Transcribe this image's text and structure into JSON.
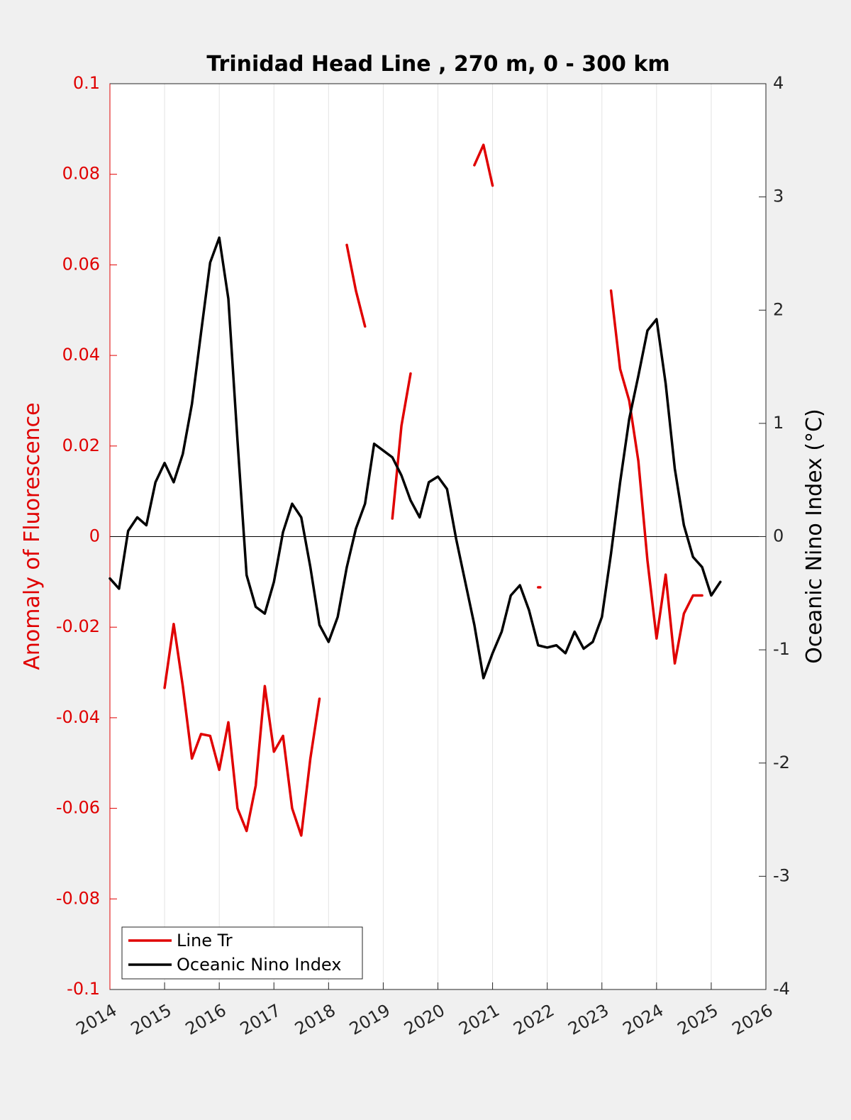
{
  "chart_data": {
    "type": "line",
    "title": "Trinidad Head Line , 270 m, 0 - 300 km",
    "ylabel": "Anomaly of Fluorescence",
    "y2label": "Oceanic Nino Index (°C)",
    "x": [
      2014.0,
      2014.1667,
      2014.3333,
      2014.5,
      2014.6667,
      2014.8333,
      2015.0,
      2015.1667,
      2015.3333,
      2015.5,
      2015.6667,
      2015.8333,
      2016.0,
      2016.1667,
      2016.3333,
      2016.5,
      2016.6667,
      2016.8333,
      2017.0,
      2017.1667,
      2017.3333,
      2017.5,
      2017.6667,
      2017.8333,
      2018.0,
      2018.1667,
      2018.3333,
      2018.5,
      2018.6667,
      2018.8333,
      2019.0,
      2019.1667,
      2019.3333,
      2019.5,
      2019.6667,
      2019.8333,
      2020.0,
      2020.1667,
      2020.3333,
      2020.5,
      2020.6667,
      2020.8333,
      2021.0,
      2021.1667,
      2021.3333,
      2021.5,
      2021.6667,
      2021.8333,
      2022.0,
      2022.1667,
      2022.3333,
      2022.5,
      2022.6667,
      2022.8333,
      2023.0,
      2023.1667,
      2023.3333,
      2023.5,
      2023.6667,
      2023.8333,
      2024.0,
      2024.1667,
      2024.3333,
      2024.5,
      2024.6667,
      2024.8333,
      2025.0,
      2025.1667
    ],
    "series": [
      {
        "name": "Line Tr",
        "color": "#e00000",
        "axis": "y",
        "values": [
          null,
          null,
          null,
          null,
          null,
          null,
          -0.0334,
          -0.0193,
          -0.033,
          -0.049,
          -0.0436,
          -0.044,
          -0.0515,
          -0.041,
          -0.06,
          -0.065,
          -0.055,
          -0.033,
          -0.0475,
          -0.044,
          -0.06,
          -0.066,
          -0.049,
          -0.0358,
          null,
          null,
          0.0644,
          0.0543,
          0.0464,
          null,
          null,
          0.004,
          0.0245,
          0.036,
          null,
          null,
          null,
          null,
          null,
          null,
          0.082,
          0.0865,
          0.0775,
          null,
          null,
          null,
          null,
          -0.0112,
          null,
          null,
          null,
          null,
          null,
          null,
          null,
          0.0543,
          0.037,
          0.03,
          0.0167,
          -0.0053,
          -0.0225,
          -0.0084,
          -0.028,
          -0.017,
          -0.013,
          -0.013,
          null,
          null
        ]
      },
      {
        "name": "Oceanic Nino Index",
        "color": "#000000",
        "axis": "y2",
        "values": [
          -0.37,
          -0.46,
          0.05,
          0.17,
          0.1,
          0.48,
          0.65,
          0.48,
          0.73,
          1.17,
          1.8,
          2.42,
          2.64,
          2.1,
          0.85,
          -0.34,
          -0.62,
          -0.68,
          -0.4,
          0.04,
          0.29,
          0.17,
          -0.27,
          -0.78,
          -0.93,
          -0.71,
          -0.27,
          0.07,
          0.29,
          0.82,
          0.76,
          0.7,
          0.54,
          0.32,
          0.17,
          0.48,
          0.53,
          0.42,
          -0.02,
          -0.4,
          -0.78,
          -1.25,
          -1.03,
          -0.84,
          -0.52,
          -0.43,
          -0.65,
          -0.96,
          -0.98,
          -0.96,
          -1.03,
          -0.84,
          -0.99,
          -0.93,
          -0.71,
          -0.15,
          0.48,
          1.04,
          1.42,
          1.82,
          1.92,
          1.35,
          0.6,
          0.1,
          -0.18,
          -0.27,
          -0.52,
          -0.4
        ]
      }
    ],
    "xlim": [
      2014,
      2026
    ],
    "xticks": [
      2014,
      2015,
      2016,
      2017,
      2018,
      2019,
      2020,
      2021,
      2022,
      2023,
      2024,
      2025,
      2026
    ],
    "ylim": [
      -0.1,
      0.1
    ],
    "yticks": [
      -0.1,
      -0.08,
      -0.06,
      -0.04,
      -0.02,
      0,
      0.02,
      0.04,
      0.06,
      0.08,
      0.1
    ],
    "y2lim": [
      -4,
      4
    ],
    "y2ticks": [
      -4,
      -3,
      -2,
      -1,
      0,
      1,
      2,
      3,
      4
    ],
    "ycolor": "#e00000",
    "grid": true,
    "legend": "lower left"
  }
}
